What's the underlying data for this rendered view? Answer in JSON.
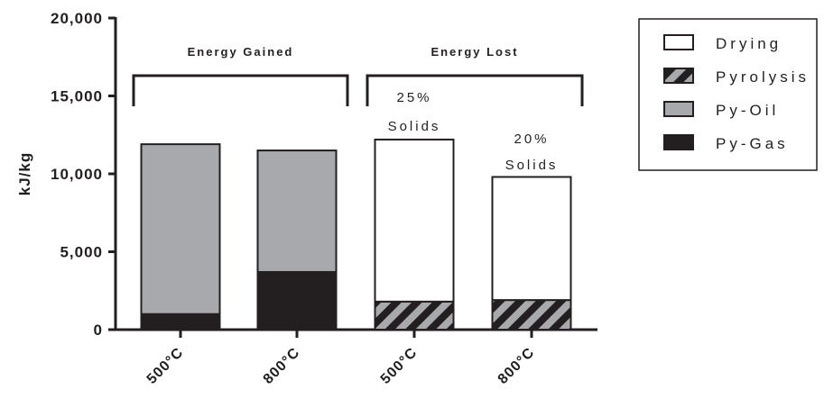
{
  "chart_data": {
    "type": "bar",
    "stacked": true,
    "categories": [
      "500°C",
      "800°C",
      "500°C",
      "800°C"
    ],
    "ylabel": "kJ/kg",
    "xlabel": "",
    "ylim": [
      0,
      20000
    ],
    "yticks": [
      "0",
      "5,000",
      "10,000",
      "15,000",
      "20,000"
    ],
    "grid": false,
    "legend_position": "top-right",
    "series": [
      {
        "name": "Drying",
        "values": [
          0,
          0,
          10400,
          7900
        ],
        "color": "#ffffff",
        "pattern": "none"
      },
      {
        "name": "Pyrolysis",
        "values": [
          0,
          0,
          1800,
          1900
        ],
        "color": "#a7a9ac",
        "pattern": "hatch"
      },
      {
        "name": "Py-Oil",
        "values": [
          10900,
          7800,
          0,
          0
        ],
        "color": "#a7a9ac",
        "pattern": "none"
      },
      {
        "name": "Py-Gas",
        "values": [
          1000,
          3700,
          0,
          0
        ],
        "color": "#231f20",
        "pattern": "none"
      }
    ],
    "groups": [
      {
        "label": "Energy Gained",
        "categories": [
          0,
          1
        ]
      },
      {
        "label": "Energy Lost",
        "categories": [
          2,
          3
        ]
      }
    ],
    "annotations": [
      {
        "category": 2,
        "lines": [
          "25%",
          "Solids"
        ]
      },
      {
        "category": 3,
        "lines": [
          "20%",
          "Solids"
        ]
      }
    ]
  }
}
